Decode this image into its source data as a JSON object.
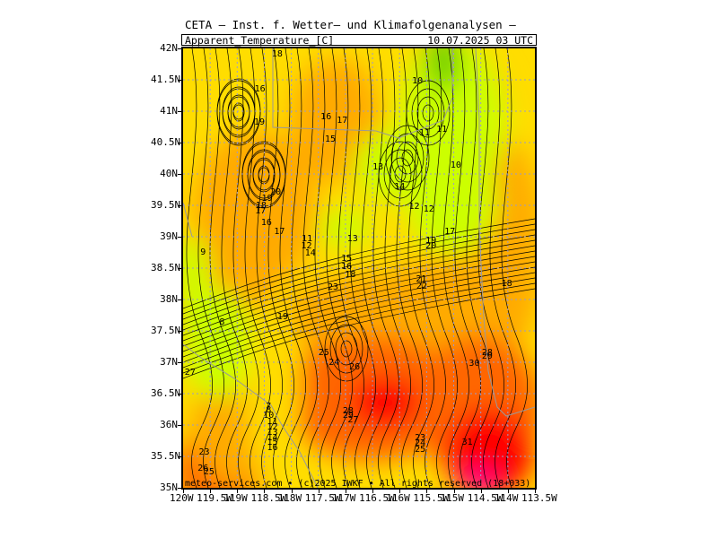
{
  "title": "CETA — Inst. f. Wetter— und Klimafolgenanalysen —",
  "subtitle_left": "Apparent_Temperature_[C]",
  "subtitle_right": "10.07.2025 03 UTC",
  "credit": "meteo-services.com • (c)2025 IWKF • All rights reserved (18+033)",
  "lat_labels": [
    "42N",
    "41.5N",
    "41N",
    "40.5N",
    "40N",
    "39.5N",
    "39N",
    "38.5N",
    "38N",
    "37.5N",
    "37N",
    "36.5N",
    "36N",
    "35.5N",
    "35N"
  ],
  "lon_labels": [
    "120W",
    "119.5W",
    "119W",
    "118.5W",
    "118W",
    "117.5W",
    "117W",
    "116.5W",
    "116W",
    "115.5W",
    "115W",
    "114.5W",
    "114W",
    "113.5W"
  ],
  "contour_labels": [
    {
      "text": "18",
      "lon": -118.26,
      "lat": 41.9
    },
    {
      "text": "16",
      "lon": -118.58,
      "lat": 41.35
    },
    {
      "text": "19",
      "lon": -118.59,
      "lat": 40.82
    },
    {
      "text": "16",
      "lon": -117.36,
      "lat": 40.9
    },
    {
      "text": "17",
      "lon": -117.06,
      "lat": 40.84
    },
    {
      "text": "15",
      "lon": -117.28,
      "lat": 40.54
    },
    {
      "text": "10",
      "lon": -115.67,
      "lat": 41.47
    },
    {
      "text": "11",
      "lon": -115.54,
      "lat": 40.64
    },
    {
      "text": "11",
      "lon": -115.22,
      "lat": 40.7
    },
    {
      "text": "10",
      "lon": -114.96,
      "lat": 40.13
    },
    {
      "text": "13",
      "lon": -116.4,
      "lat": 40.1
    },
    {
      "text": "14",
      "lon": -116.0,
      "lat": 39.78
    },
    {
      "text": "20",
      "lon": -118.29,
      "lat": 39.7
    },
    {
      "text": "19",
      "lon": -118.45,
      "lat": 39.6
    },
    {
      "text": "18",
      "lon": -118.56,
      "lat": 39.49
    },
    {
      "text": "17",
      "lon": -118.57,
      "lat": 39.4
    },
    {
      "text": "16",
      "lon": -118.46,
      "lat": 39.21
    },
    {
      "text": "12",
      "lon": -115.73,
      "lat": 39.47
    },
    {
      "text": "12",
      "lon": -115.46,
      "lat": 39.43
    },
    {
      "text": "17",
      "lon": -115.07,
      "lat": 39.07
    },
    {
      "text": "17",
      "lon": -118.22,
      "lat": 39.07
    },
    {
      "text": "11",
      "lon": -117.71,
      "lat": 38.96
    },
    {
      "text": "12",
      "lon": -117.72,
      "lat": 38.84
    },
    {
      "text": "13",
      "lon": -116.87,
      "lat": 38.96
    },
    {
      "text": "14",
      "lon": -117.65,
      "lat": 38.73
    },
    {
      "text": "19",
      "lon": -115.42,
      "lat": 38.93
    },
    {
      "text": "20",
      "lon": -115.42,
      "lat": 38.85
    },
    {
      "text": "9",
      "lon": -119.63,
      "lat": 38.75
    },
    {
      "text": "15",
      "lon": -116.98,
      "lat": 38.64
    },
    {
      "text": "16",
      "lon": -116.98,
      "lat": 38.52
    },
    {
      "text": "18",
      "lon": -116.91,
      "lat": 38.38
    },
    {
      "text": "21",
      "lon": -115.6,
      "lat": 38.31
    },
    {
      "text": "22",
      "lon": -115.59,
      "lat": 38.2
    },
    {
      "text": "18",
      "lon": -114.02,
      "lat": 38.25
    },
    {
      "text": "23",
      "lon": -117.23,
      "lat": 38.18
    },
    {
      "text": "19",
      "lon": -118.16,
      "lat": 37.71
    },
    {
      "text": "8",
      "lon": -119.28,
      "lat": 37.63
    },
    {
      "text": "25",
      "lon": -117.4,
      "lat": 37.14
    },
    {
      "text": "24",
      "lon": -117.21,
      "lat": 36.98
    },
    {
      "text": "26",
      "lon": -116.83,
      "lat": 36.91
    },
    {
      "text": "28",
      "lon": -114.38,
      "lat": 37.15
    },
    {
      "text": "29",
      "lon": -114.38,
      "lat": 37.08
    },
    {
      "text": "30",
      "lon": -114.62,
      "lat": 36.97
    },
    {
      "text": "27",
      "lon": -119.87,
      "lat": 36.83
    },
    {
      "text": "7",
      "lon": -118.42,
      "lat": 36.29
    },
    {
      "text": "8",
      "lon": -118.42,
      "lat": 36.23
    },
    {
      "text": "10",
      "lon": -118.42,
      "lat": 36.15
    },
    {
      "text": "28",
      "lon": -116.95,
      "lat": 36.21
    },
    {
      "text": "29",
      "lon": -116.95,
      "lat": 36.15
    },
    {
      "text": "27",
      "lon": -116.86,
      "lat": 36.07
    },
    {
      "text": "11",
      "lon": -118.35,
      "lat": 36.05
    },
    {
      "text": "12",
      "lon": -118.35,
      "lat": 35.96
    },
    {
      "text": "13",
      "lon": -118.35,
      "lat": 35.87
    },
    {
      "text": "14",
      "lon": -118.35,
      "lat": 35.79
    },
    {
      "text": "15",
      "lon": -118.35,
      "lat": 35.71
    },
    {
      "text": "16",
      "lon": -118.35,
      "lat": 35.63
    },
    {
      "text": "23",
      "lon": -115.62,
      "lat": 35.78
    },
    {
      "text": "24",
      "lon": -115.62,
      "lat": 35.7
    },
    {
      "text": "25",
      "lon": -115.62,
      "lat": 35.6
    },
    {
      "text": "31",
      "lon": -114.75,
      "lat": 35.72
    },
    {
      "text": "23",
      "lon": -119.61,
      "lat": 35.56
    },
    {
      "text": "26",
      "lon": -119.63,
      "lat": 35.3
    },
    {
      "text": "25",
      "lon": -119.52,
      "lat": 35.25
    }
  ],
  "colors": {
    "cold": "#66cc00",
    "cool": "#ccff00",
    "mild": "#ffdd00",
    "warm": "#ffaa00",
    "hot": "#ff6600",
    "very_hot": "#ff0000",
    "extreme": "#ff00aa",
    "grid": "#9999cc",
    "border": "#999999"
  }
}
